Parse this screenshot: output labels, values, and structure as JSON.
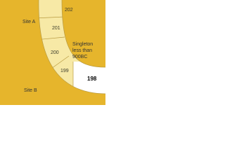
{
  "labels": {
    "site_a": "Site A",
    "site_b": "Site B",
    "note": [
      "Singleton",
      "less than",
      "900BC"
    ]
  },
  "segments": [
    "202",
    "201",
    "200",
    "199",
    "198"
  ]
}
